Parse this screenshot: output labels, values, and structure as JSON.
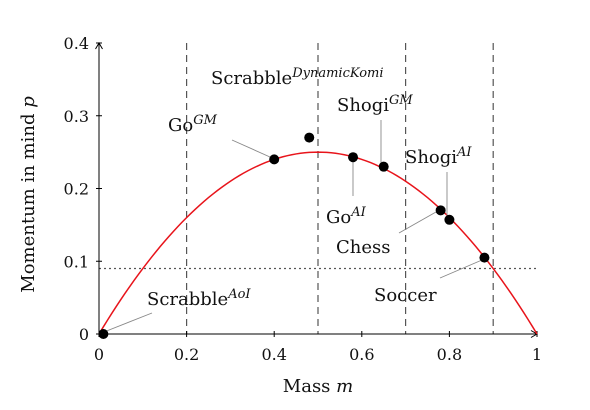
{
  "chart_data": {
    "type": "line",
    "xlabel": {
      "text": "Mass ",
      "var": "m"
    },
    "ylabel": {
      "text": "Momentum in mind ",
      "var": "p"
    },
    "xlim": [
      0,
      1
    ],
    "ylim": [
      0,
      0.4
    ],
    "x_ticks": [
      "0",
      "0.2",
      "0.4",
      "0.6",
      "0.8",
      "1"
    ],
    "y_ticks": [
      "0",
      "0.1",
      "0.2",
      "0.3",
      "0.4"
    ],
    "x_tick_values": [
      0,
      0.2,
      0.4,
      0.6,
      0.8,
      1
    ],
    "y_tick_values": [
      0,
      0.1,
      0.2,
      0.3,
      0.4
    ],
    "grid": false,
    "curve": {
      "function": "p = m(1-m)",
      "color": "#e8141b",
      "x_range": [
        0,
        1
      ]
    },
    "vertical_dashed_lines": [
      0.2,
      0.5,
      0.7,
      0.9
    ],
    "horizontal_dotted_line": 0.09,
    "points": [
      {
        "label": "Scrabble",
        "sup": "AoI",
        "x": 0.01,
        "y": 0.0
      },
      {
        "label": "Go",
        "sup": "GM",
        "x": 0.4,
        "y": 0.24
      },
      {
        "label": "Scrabble",
        "sup": "DynamicKomi",
        "x": 0.48,
        "y": 0.27
      },
      {
        "label": "Go",
        "sup": "AI",
        "x": 0.58,
        "y": 0.243
      },
      {
        "label": "Shogi",
        "sup": "GM",
        "x": 0.65,
        "y": 0.23
      },
      {
        "label": "Shogi",
        "sup": "AI",
        "x": 0.78,
        "y": 0.17
      },
      {
        "label": "Chess",
        "sup": "",
        "x": 0.8,
        "y": 0.157
      },
      {
        "label": "Soccer",
        "sup": "",
        "x": 0.88,
        "y": 0.105
      }
    ]
  }
}
